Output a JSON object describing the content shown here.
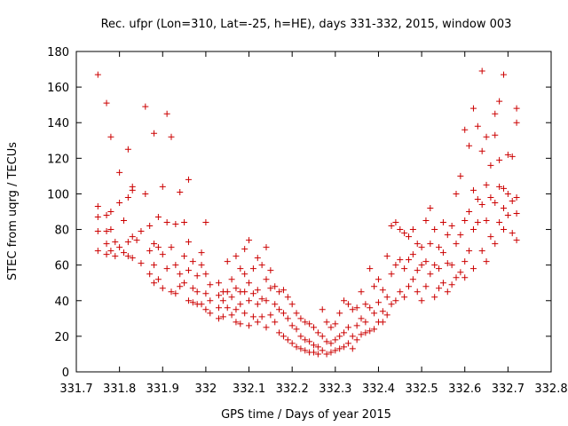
{
  "chart_data": {
    "type": "scatter",
    "title": "Rec. ufpr (Lon=310, Lat=-25, h=HE), days 331-332, 2015, window 003",
    "xlabel": "GPS time / Days of year 2015",
    "ylabel": "STEC from uqrg / TECUs",
    "xlim": [
      331.7,
      332.8
    ],
    "ylim": [
      0,
      180
    ],
    "xticks": [
      "331.7",
      "331.8",
      "331.9",
      "332",
      "332.1",
      "332.2",
      "332.3",
      "332.4",
      "332.5",
      "332.6",
      "332.7",
      "332.8"
    ],
    "xtick_values": [
      331.7,
      331.8,
      331.9,
      332.0,
      332.1,
      332.2,
      332.3,
      332.4,
      332.5,
      332.6,
      332.7,
      332.8
    ],
    "yticks": [
      "0",
      "20",
      "40",
      "60",
      "80",
      "100",
      "120",
      "140",
      "160",
      "180"
    ],
    "ytick_values": [
      0,
      20,
      40,
      60,
      80,
      100,
      120,
      140,
      160,
      180
    ],
    "grid": false,
    "marker": "+",
    "color": "#cc0000",
    "series": [
      {
        "points": [
          [
            331.75,
            167
          ],
          [
            331.77,
            151
          ],
          [
            331.78,
            132
          ],
          [
            331.8,
            112
          ],
          [
            331.82,
            125
          ],
          [
            331.83,
            104
          ],
          [
            331.75,
            93
          ],
          [
            331.75,
            87
          ],
          [
            331.75,
            79
          ],
          [
            331.75,
            68
          ],
          [
            331.77,
            88
          ],
          [
            331.77,
            79
          ],
          [
            331.77,
            72
          ],
          [
            331.77,
            66
          ],
          [
            331.78,
            90
          ],
          [
            331.78,
            80
          ],
          [
            331.78,
            68
          ],
          [
            331.79,
            73
          ],
          [
            331.79,
            65
          ],
          [
            331.8,
            95
          ],
          [
            331.8,
            70
          ],
          [
            331.81,
            85
          ],
          [
            331.81,
            67
          ],
          [
            331.82,
            98
          ],
          [
            331.82,
            73
          ],
          [
            331.82,
            65
          ],
          [
            331.83,
            102
          ],
          [
            331.83,
            76
          ],
          [
            331.83,
            64
          ],
          [
            331.84,
            74
          ],
          [
            331.85,
            61
          ],
          [
            331.85,
            79
          ],
          [
            331.86,
            149
          ],
          [
            331.86,
            100
          ],
          [
            331.87,
            55
          ],
          [
            331.87,
            82
          ],
          [
            331.87,
            68
          ],
          [
            331.88,
            134
          ],
          [
            331.88,
            72
          ],
          [
            331.88,
            60
          ],
          [
            331.88,
            50
          ],
          [
            331.89,
            87
          ],
          [
            331.89,
            70
          ],
          [
            331.89,
            52
          ],
          [
            331.9,
            104
          ],
          [
            331.9,
            66
          ],
          [
            331.9,
            47
          ],
          [
            331.91,
            145
          ],
          [
            331.91,
            84
          ],
          [
            331.91,
            58
          ],
          [
            331.92,
            132
          ],
          [
            331.92,
            70
          ],
          [
            331.92,
            45
          ],
          [
            331.93,
            83
          ],
          [
            331.93,
            60
          ],
          [
            331.93,
            44
          ],
          [
            331.94,
            101
          ],
          [
            331.94,
            55
          ],
          [
            331.94,
            48
          ],
          [
            331.95,
            84
          ],
          [
            331.95,
            65
          ],
          [
            331.95,
            50
          ],
          [
            331.96,
            108
          ],
          [
            331.96,
            73
          ],
          [
            331.96,
            57
          ],
          [
            331.96,
            40
          ],
          [
            331.97,
            62
          ],
          [
            331.97,
            47
          ],
          [
            331.97,
            39
          ],
          [
            331.98,
            54
          ],
          [
            331.98,
            45
          ],
          [
            331.98,
            38
          ],
          [
            331.99,
            67
          ],
          [
            331.99,
            60
          ],
          [
            331.99,
            38
          ],
          [
            332.0,
            84
          ],
          [
            332.0,
            55
          ],
          [
            332.0,
            44
          ],
          [
            332.0,
            35
          ],
          [
            332.01,
            49
          ],
          [
            332.01,
            40
          ],
          [
            332.01,
            33
          ],
          [
            332.03,
            50
          ],
          [
            332.03,
            43
          ],
          [
            332.03,
            36
          ],
          [
            332.03,
            30
          ],
          [
            332.04,
            45
          ],
          [
            332.04,
            40
          ],
          [
            332.04,
            31
          ],
          [
            332.05,
            62
          ],
          [
            332.05,
            45
          ],
          [
            332.05,
            36
          ],
          [
            332.06,
            52
          ],
          [
            332.06,
            42
          ],
          [
            332.06,
            32
          ],
          [
            332.07,
            65
          ],
          [
            332.07,
            47
          ],
          [
            332.07,
            35
          ],
          [
            332.07,
            28
          ],
          [
            332.08,
            58
          ],
          [
            332.08,
            45
          ],
          [
            332.08,
            38
          ],
          [
            332.08,
            27
          ],
          [
            332.09,
            69
          ],
          [
            332.09,
            55
          ],
          [
            332.09,
            45
          ],
          [
            332.09,
            33
          ],
          [
            332.1,
            74
          ],
          [
            332.1,
            50
          ],
          [
            332.1,
            40
          ],
          [
            332.1,
            26
          ],
          [
            332.11,
            58
          ],
          [
            332.11,
            44
          ],
          [
            332.11,
            31
          ],
          [
            332.12,
            64
          ],
          [
            332.12,
            46
          ],
          [
            332.12,
            38
          ],
          [
            332.12,
            28
          ],
          [
            332.13,
            60
          ],
          [
            332.13,
            41
          ],
          [
            332.13,
            31
          ],
          [
            332.14,
            70
          ],
          [
            332.14,
            52
          ],
          [
            332.14,
            40
          ],
          [
            332.14,
            25
          ],
          [
            332.15,
            57
          ],
          [
            332.15,
            47
          ],
          [
            332.15,
            32
          ],
          [
            332.16,
            48
          ],
          [
            332.16,
            38
          ],
          [
            332.16,
            28
          ],
          [
            332.17,
            45
          ],
          [
            332.17,
            35
          ],
          [
            332.17,
            22
          ],
          [
            332.18,
            46
          ],
          [
            332.18,
            33
          ],
          [
            332.18,
            20
          ],
          [
            332.19,
            42
          ],
          [
            332.19,
            30
          ],
          [
            332.19,
            18
          ],
          [
            332.2,
            38
          ],
          [
            332.2,
            26
          ],
          [
            332.2,
            16
          ],
          [
            332.21,
            33
          ],
          [
            332.21,
            24
          ],
          [
            332.21,
            14
          ],
          [
            332.22,
            30
          ],
          [
            332.22,
            20
          ],
          [
            332.22,
            13
          ],
          [
            332.23,
            28
          ],
          [
            332.23,
            18
          ],
          [
            332.23,
            12
          ],
          [
            332.24,
            27
          ],
          [
            332.24,
            17
          ],
          [
            332.24,
            11
          ],
          [
            332.25,
            25
          ],
          [
            332.25,
            15
          ],
          [
            332.25,
            11
          ],
          [
            332.26,
            22
          ],
          [
            332.26,
            14
          ],
          [
            332.26,
            10
          ],
          [
            332.27,
            35
          ],
          [
            332.27,
            20
          ],
          [
            332.27,
            12
          ],
          [
            332.28,
            28
          ],
          [
            332.28,
            17
          ],
          [
            332.28,
            10
          ],
          [
            332.29,
            25
          ],
          [
            332.29,
            16
          ],
          [
            332.29,
            11
          ],
          [
            332.3,
            27
          ],
          [
            332.3,
            18
          ],
          [
            332.3,
            12
          ],
          [
            332.31,
            33
          ],
          [
            332.31,
            20
          ],
          [
            332.31,
            13
          ],
          [
            332.32,
            40
          ],
          [
            332.32,
            22
          ],
          [
            332.32,
            14
          ],
          [
            332.33,
            38
          ],
          [
            332.33,
            25
          ],
          [
            332.33,
            16
          ],
          [
            332.34,
            35
          ],
          [
            332.34,
            20
          ],
          [
            332.34,
            13
          ],
          [
            332.35,
            36
          ],
          [
            332.35,
            26
          ],
          [
            332.35,
            18
          ],
          [
            332.36,
            45
          ],
          [
            332.36,
            30
          ],
          [
            332.36,
            21
          ],
          [
            332.37,
            38
          ],
          [
            332.37,
            28
          ],
          [
            332.37,
            22
          ],
          [
            332.38,
            58
          ],
          [
            332.38,
            36
          ],
          [
            332.38,
            23
          ],
          [
            332.39,
            48
          ],
          [
            332.39,
            33
          ],
          [
            332.39,
            24
          ],
          [
            332.4,
            52
          ],
          [
            332.4,
            39
          ],
          [
            332.4,
            28
          ],
          [
            332.41,
            46
          ],
          [
            332.41,
            34
          ],
          [
            332.41,
            28
          ],
          [
            332.42,
            65
          ],
          [
            332.42,
            42
          ],
          [
            332.42,
            32
          ],
          [
            332.43,
            82
          ],
          [
            332.43,
            55
          ],
          [
            332.43,
            38
          ],
          [
            332.44,
            84
          ],
          [
            332.44,
            60
          ],
          [
            332.44,
            40
          ],
          [
            332.45,
            80
          ],
          [
            332.45,
            63
          ],
          [
            332.45,
            45
          ],
          [
            332.46,
            78
          ],
          [
            332.46,
            58
          ],
          [
            332.46,
            42
          ],
          [
            332.47,
            76
          ],
          [
            332.47,
            63
          ],
          [
            332.47,
            48
          ],
          [
            332.48,
            80
          ],
          [
            332.48,
            66
          ],
          [
            332.48,
            52
          ],
          [
            332.49,
            72
          ],
          [
            332.49,
            57
          ],
          [
            332.49,
            45
          ],
          [
            332.5,
            70
          ],
          [
            332.5,
            60
          ],
          [
            332.5,
            40
          ],
          [
            332.51,
            85
          ],
          [
            332.51,
            62
          ],
          [
            332.51,
            48
          ],
          [
            332.52,
            92
          ],
          [
            332.52,
            72
          ],
          [
            332.52,
            55
          ],
          [
            332.53,
            80
          ],
          [
            332.53,
            60
          ],
          [
            332.53,
            42
          ],
          [
            332.54,
            70
          ],
          [
            332.54,
            58
          ],
          [
            332.54,
            47
          ],
          [
            332.55,
            84
          ],
          [
            332.55,
            67
          ],
          [
            332.55,
            50
          ],
          [
            332.56,
            77
          ],
          [
            332.56,
            61
          ],
          [
            332.56,
            45
          ],
          [
            332.57,
            82
          ],
          [
            332.57,
            60
          ],
          [
            332.57,
            49
          ],
          [
            332.58,
            100
          ],
          [
            332.58,
            72
          ],
          [
            332.58,
            53
          ],
          [
            332.59,
            110
          ],
          [
            332.59,
            77
          ],
          [
            332.59,
            56
          ],
          [
            332.6,
            136
          ],
          [
            332.6,
            85
          ],
          [
            332.6,
            62
          ],
          [
            332.6,
            53
          ],
          [
            332.61,
            127
          ],
          [
            332.61,
            90
          ],
          [
            332.61,
            68
          ],
          [
            332.62,
            148
          ],
          [
            332.62,
            102
          ],
          [
            332.62,
            80
          ],
          [
            332.62,
            58
          ],
          [
            332.63,
            138
          ],
          [
            332.63,
            97
          ],
          [
            332.63,
            84
          ],
          [
            332.64,
            169
          ],
          [
            332.64,
            124
          ],
          [
            332.64,
            94
          ],
          [
            332.64,
            68
          ],
          [
            332.65,
            132
          ],
          [
            332.65,
            105
          ],
          [
            332.65,
            85
          ],
          [
            332.65,
            62
          ],
          [
            332.66,
            116
          ],
          [
            332.66,
            98
          ],
          [
            332.66,
            76
          ],
          [
            332.67,
            145
          ],
          [
            332.67,
            133
          ],
          [
            332.67,
            95
          ],
          [
            332.67,
            72
          ],
          [
            332.68,
            152
          ],
          [
            332.68,
            119
          ],
          [
            332.68,
            104
          ],
          [
            332.68,
            84
          ],
          [
            332.69,
            167
          ],
          [
            332.69,
            103
          ],
          [
            332.69,
            92
          ],
          [
            332.69,
            80
          ],
          [
            332.7,
            122
          ],
          [
            332.7,
            100
          ],
          [
            332.7,
            88
          ],
          [
            332.71,
            121
          ],
          [
            332.71,
            96
          ],
          [
            332.71,
            78
          ],
          [
            332.72,
            148
          ],
          [
            332.72,
            140
          ],
          [
            332.72,
            98
          ],
          [
            332.72,
            89
          ],
          [
            332.72,
            74
          ]
        ]
      }
    ]
  }
}
